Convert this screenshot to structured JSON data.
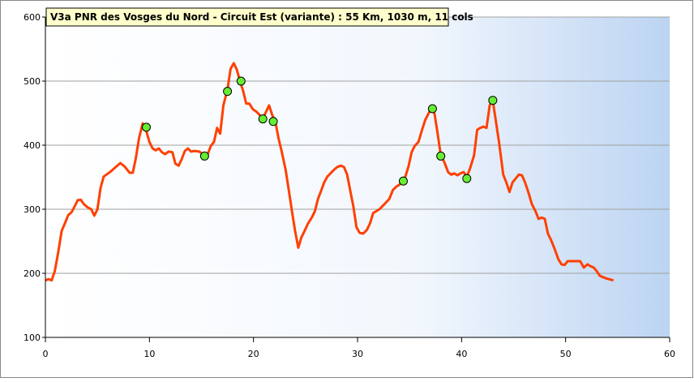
{
  "chart_data": {
    "type": "line",
    "title": "V3a PNR des Vosges du Nord - Circuit Est (variante)  : 55 Km, 1030 m, 11 cols",
    "x": [
      0,
      0.3,
      0.6,
      0.9,
      1.25,
      1.56,
      1.87,
      2.2,
      2.5,
      2.8,
      3.1,
      3.4,
      3.7,
      4.05,
      4.4,
      4.7,
      5.0,
      5.3,
      5.6,
      6.2,
      6.7,
      7.2,
      7.6,
      8.1,
      8.4,
      8.7,
      9.0,
      9.35,
      9.7,
      10.0,
      10.3,
      10.6,
      10.9,
      11.2,
      11.5,
      11.85,
      12.2,
      12.5,
      12.8,
      13.1,
      13.4,
      13.7,
      14.0,
      14.3,
      14.8,
      15.3,
      15.6,
      15.9,
      16.2,
      16.5,
      16.8,
      17.1,
      17.5,
      17.8,
      18.1,
      18.4,
      18.7,
      19.0,
      19.3,
      19.6,
      19.95,
      20.3,
      20.6,
      20.9,
      21.2,
      21.5,
      21.8,
      22.1,
      22.4,
      22.7,
      23.1,
      23.4,
      23.7,
      24.0,
      24.3,
      24.6,
      24.9,
      25.25,
      25.6,
      25.9,
      26.2,
      26.5,
      26.8,
      27.1,
      27.4,
      27.7,
      28.05,
      28.4,
      28.7,
      29.0,
      29.3,
      29.6,
      29.9,
      30.2,
      30.55,
      30.9,
      31.2,
      31.5,
      31.8,
      32.1,
      32.4,
      32.7,
      33.05,
      33.4,
      33.7,
      34.0,
      34.3,
      34.6,
      34.9,
      35.2,
      35.5,
      35.85,
      36.2,
      36.5,
      36.8,
      37.1,
      37.4,
      37.7,
      38.0,
      38.35,
      38.7,
      39.0,
      39.3,
      39.6,
      39.9,
      40.2,
      40.5,
      40.8,
      41.2,
      41.5,
      41.8,
      42.1,
      42.4,
      42.7,
      43.0,
      43.3,
      43.6,
      44.0,
      44.3,
      44.6,
      44.9,
      45.2,
      45.5,
      45.8,
      46.1,
      46.45,
      46.75,
      47.1,
      47.4,
      47.7,
      48.0,
      48.3,
      48.6,
      48.9,
      49.3,
      49.6,
      49.9,
      50.2,
      50.5,
      50.8,
      51.1,
      51.4,
      51.75,
      52.1,
      52.4,
      52.7,
      53.0,
      53.3,
      53.9,
      54.6
    ],
    "values": [
      189,
      191,
      189,
      203,
      234,
      266,
      278,
      291,
      295,
      304,
      314,
      315,
      308,
      303,
      300,
      290,
      300,
      333,
      351,
      358,
      365,
      372,
      367,
      357,
      357,
      380,
      411,
      434,
      422,
      405,
      395,
      392,
      395,
      389,
      386,
      390,
      389,
      371,
      368,
      378,
      391,
      395,
      390,
      391,
      390,
      384,
      386,
      399,
      405,
      427,
      418,
      462,
      487,
      519,
      528,
      518,
      500,
      485,
      465,
      465,
      456,
      452,
      447,
      442,
      452,
      462,
      447,
      437,
      411,
      391,
      361,
      329,
      297,
      266,
      240,
      256,
      266,
      278,
      287,
      297,
      316,
      329,
      342,
      351,
      356,
      361,
      366,
      368,
      366,
      354,
      329,
      304,
      272,
      263,
      262,
      268,
      278,
      294,
      297,
      300,
      305,
      310,
      316,
      330,
      335,
      338,
      343,
      351,
      367,
      389,
      399,
      405,
      424,
      439,
      449,
      458,
      449,
      418,
      384,
      373,
      358,
      354,
      356,
      353,
      356,
      358,
      351,
      363,
      384,
      424,
      427,
      429,
      427,
      462,
      470,
      437,
      405,
      354,
      342,
      327,
      342,
      348,
      354,
      353,
      342,
      325,
      308,
      297,
      285,
      287,
      285,
      262,
      252,
      240,
      222,
      214,
      213,
      219,
      219,
      219,
      219,
      219,
      209,
      214,
      211,
      209,
      203,
      196,
      192,
      189
    ],
    "color": "#ff4000",
    "markers": {
      "x": [
        9.7,
        15.3,
        17.5,
        18.8,
        20.9,
        21.9,
        34.4,
        37.2,
        38.0,
        40.5,
        43.0
      ],
      "values": [
        428,
        383,
        484,
        500,
        441,
        437,
        344,
        457,
        383,
        348,
        470
      ],
      "color": "#66ee33"
    },
    "xlim": [
      0,
      60
    ],
    "xticks": [
      0,
      10,
      20,
      30,
      40,
      50,
      60
    ],
    "ylim": [
      100,
      600
    ],
    "yticks": [
      100,
      200,
      300,
      400,
      500,
      600
    ],
    "grid": true
  }
}
